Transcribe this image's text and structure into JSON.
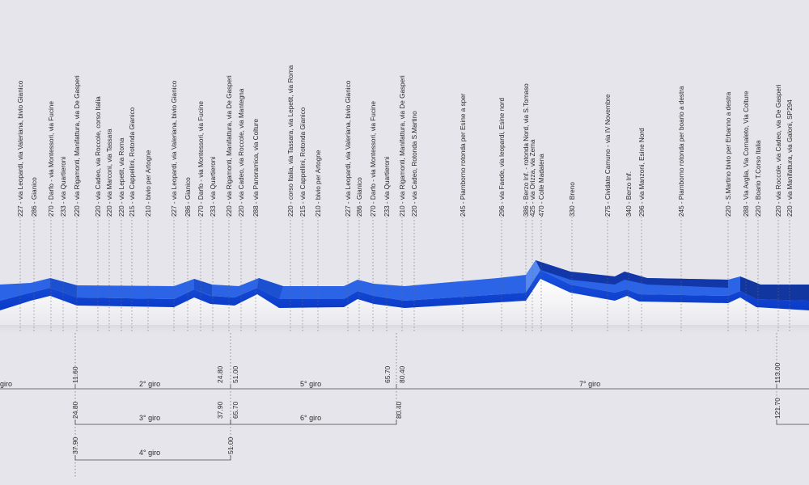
{
  "waypoints": [
    {
      "label": "227 - via Leopardi, via Valeriana, bivio Gianico"
    },
    {
      "label": "286 - Gianico"
    },
    {
      "label": "270 - Darfo - via Montessori, via Fucine"
    },
    {
      "label": "233 - via Quartieroni"
    },
    {
      "label": "220 - via Rigamonti, Manifattura, via De Gasperi"
    },
    {
      "label": "220 - via Cadeo, via Roccole, corso Italia"
    },
    {
      "label": "220 - via Marconi, via Tassara"
    },
    {
      "label": "220 - via Lepetit, via Roma"
    },
    {
      "label": "215 - via Cappellini, Rotonda Gianico"
    },
    {
      "label": "210 - bivio per Artogne"
    },
    {
      "label": "227 - via Leopardi, via Valeriana, bivio Gianico"
    },
    {
      "label": "286 - Gianico"
    },
    {
      "label": "270 - Darfo - via Montessori, via Fucine"
    },
    {
      "label": "233 - via Quartieroni"
    },
    {
      "label": "220 - via Rigamonti, Manifattura, via De Gasperi"
    },
    {
      "label": "220 - via Cadeo, via Roccole, via Mantegna"
    },
    {
      "label": "288 - via Panoramica, via Colture"
    },
    {
      "label": "220 - corso Italia, via Tassara, via Lepetit, via Roma"
    },
    {
      "label": "215 - via Cappellini, Rotonda Gianico"
    },
    {
      "label": "210 - bivio per Artogne"
    },
    {
      "label": "227 - via Leopardi, via Valeriana, bivio Gianico"
    },
    {
      "label": "286 - Gianico"
    },
    {
      "label": "270 - Darfo - via Montessori, via Fucine"
    },
    {
      "label": "233 - via Quartieroni"
    },
    {
      "label": "210 - via Rigamonti, Manifattura, via De Gasperi"
    },
    {
      "label": "220 - via Cadeo, Rotonda S.Martino"
    },
    {
      "label": "245 - Piamborno rotonda per Esine a sper"
    },
    {
      "label": "296 - via Faede, via leopardi, Esine nord"
    },
    {
      "label": "386 - Berzo Inf. - rotonda Nord, via S.Tomaso"
    },
    {
      "label": "425 - via Orizza, via Zema"
    },
    {
      "label": "470 - Colle Madalena"
    },
    {
      "label": "330 - Breno"
    },
    {
      "label": "275 - Cividate Camuno - via IV Novembre"
    },
    {
      "label": "340 - Berzo Inf."
    },
    {
      "label": "296 - via Manzoni, Esine Nord"
    },
    {
      "label": "245 - Piamborno rotonda per boario a destra"
    },
    {
      "label": "220 - S.Martino bivio per Erbanno a destra"
    },
    {
      "label": "288 - Via Avglia, Via Cornaleto, Via Colture"
    },
    {
      "label": "220 - Boario T.Corso Italia"
    },
    {
      "label": "220 - via Roccole, via Cadeo, via De Gasperi"
    },
    {
      "label": "220 - via Manifattura, via Galoni, SP294"
    }
  ],
  "km_marks": [
    {
      "label": "11.60"
    },
    {
      "label": "24.80"
    },
    {
      "label": "51.00"
    },
    {
      "label": "65.70"
    },
    {
      "label": "80.40"
    },
    {
      "label": "113.00"
    },
    {
      "label": "24.80"
    },
    {
      "label": "37.90"
    },
    {
      "label": "65.70"
    },
    {
      "label": "80.40"
    },
    {
      "label": "121.70"
    },
    {
      "label": "37.90"
    },
    {
      "label": "51.00"
    }
  ],
  "giri": [
    {
      "label": "giro"
    },
    {
      "label": "2° giro"
    },
    {
      "label": "5° giro"
    },
    {
      "label": "7° giro"
    },
    {
      "label": "3° giro"
    },
    {
      "label": "6° giro"
    },
    {
      "label": "4° giro"
    }
  ],
  "colors": {
    "background": "#e6e5ec",
    "profile_top": "#2a63e6",
    "profile_front": "#0c3fd0",
    "profile_dark": "#0a2a9a",
    "ground": "#f4f3f6"
  }
}
